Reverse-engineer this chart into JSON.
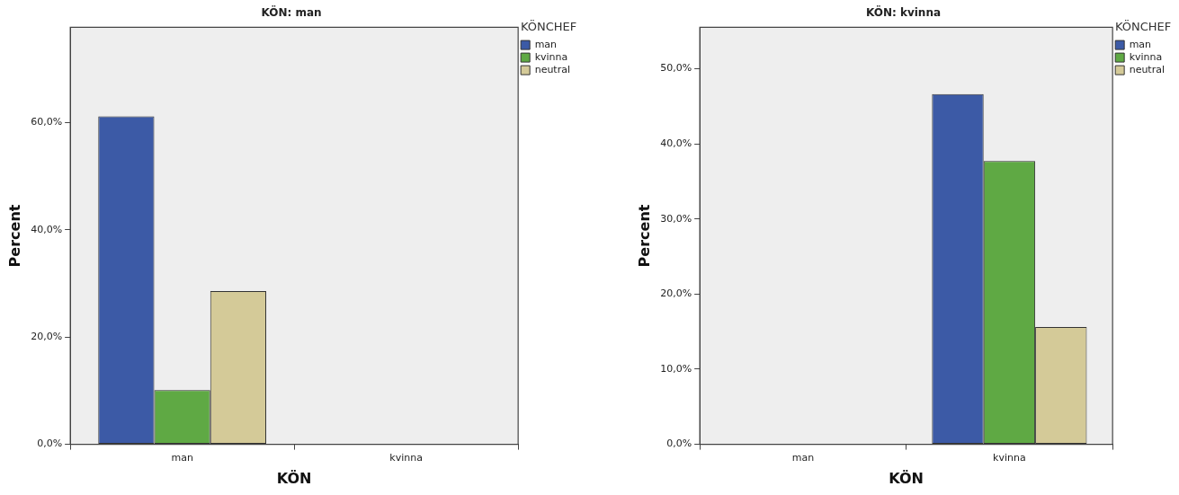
{
  "chart_data": [
    {
      "type": "bar",
      "title": "KÖN: man",
      "xlabel": "KÖN",
      "ylabel": "Percent",
      "legend_title": "KÖNCHEF",
      "legend": "top right",
      "grid": false,
      "categories": [
        "man",
        "kvinna"
      ],
      "ylim": [
        0,
        77.8
      ],
      "yticks": [
        {
          "value": 0,
          "label": "0,0%"
        },
        {
          "value": 20,
          "label": "20,0%"
        },
        {
          "value": 40,
          "label": "40,0%"
        },
        {
          "value": 60,
          "label": "60,0%"
        }
      ],
      "series": [
        {
          "name": "man",
          "color": "#3c5aa6",
          "values": [
            61.2,
            null
          ]
        },
        {
          "name": "kvinna",
          "color": "#5fa944",
          "values": [
            10.1,
            null
          ]
        },
        {
          "name": "neutral",
          "color": "#d4ca98",
          "values": [
            28.6,
            null
          ]
        }
      ]
    },
    {
      "type": "bar",
      "title": "KÖN: kvinna",
      "xlabel": "KÖN",
      "ylabel": "Percent",
      "legend_title": "KÖNCHEF",
      "legend": "top right",
      "grid": false,
      "categories": [
        "man",
        "kvinna"
      ],
      "ylim": [
        0,
        55.5
      ],
      "yticks": [
        {
          "value": 0,
          "label": "0,0%"
        },
        {
          "value": 10,
          "label": "10,0%"
        },
        {
          "value": 20,
          "label": "20,0%"
        },
        {
          "value": 30,
          "label": "30,0%"
        },
        {
          "value": 40,
          "label": "40,0%"
        },
        {
          "value": 50,
          "label": "50,0%"
        }
      ],
      "series": [
        {
          "name": "man",
          "color": "#3c5aa6",
          "values": [
            null,
            46.6
          ]
        },
        {
          "name": "kvinna",
          "color": "#5fa944",
          "values": [
            null,
            37.7
          ]
        },
        {
          "name": "neutral",
          "color": "#d4ca98",
          "values": [
            null,
            15.6
          ]
        }
      ]
    }
  ]
}
